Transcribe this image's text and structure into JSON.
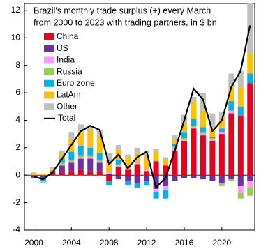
{
  "chart_data": {
    "type": "stacked-bar-line",
    "title": [
      "Brazil's monthly trade surplus (+)  every March",
      "from 2000  to 2023  with trading partners, in $ bn"
    ],
    "x": [
      2000,
      2001,
      2002,
      2003,
      2004,
      2005,
      2006,
      2007,
      2008,
      2009,
      2010,
      2011,
      2012,
      2013,
      2014,
      2015,
      2016,
      2017,
      2018,
      2019,
      2020,
      2021,
      2022,
      2023
    ],
    "series": [
      {
        "name": "China",
        "color": "#e8001c",
        "values": [
          0,
          0,
          0.1,
          0.2,
          0.3,
          0.4,
          0.3,
          0.3,
          -0.4,
          0.6,
          0.4,
          0.8,
          0.3,
          1.0,
          0.7,
          1.8,
          2.5,
          3.4,
          2.9,
          2.5,
          3.0,
          4.5,
          4.3,
          6.7
        ]
      },
      {
        "name": "US",
        "color": "#7030a0",
        "values": [
          -0.2,
          -0.3,
          0.2,
          0.5,
          0.6,
          0.8,
          0.9,
          0.6,
          0.1,
          -0.3,
          -0.4,
          -0.6,
          -0.4,
          -1.0,
          -0.8,
          -0.4,
          -0.2,
          -0.2,
          -0.3,
          -0.4,
          -0.6,
          -0.3,
          -0.8,
          -0.4
        ]
      },
      {
        "name": "India",
        "color": "#ff99ff",
        "values": [
          0,
          0,
          0,
          0.1,
          0.1,
          0.1,
          0.1,
          0.1,
          0.1,
          0.1,
          0.1,
          0.1,
          0.1,
          -0.2,
          -0.3,
          0.2,
          0.1,
          0.1,
          0.1,
          0.1,
          0.1,
          0.2,
          -0.5,
          -0.5
        ]
      },
      {
        "name": "Russia",
        "color": "#92d050",
        "values": [
          0,
          0,
          0,
          0.1,
          0.1,
          0.1,
          0.1,
          0.1,
          0.1,
          0.1,
          0.1,
          0.1,
          0.1,
          0.1,
          0.1,
          0.1,
          0.1,
          0.1,
          0.1,
          0.1,
          -0.2,
          -0.1,
          -0.4,
          -0.6
        ]
      },
      {
        "name": "Euro zone",
        "color": "#00b0f0",
        "values": [
          0,
          -0.1,
          0,
          0.3,
          0.6,
          0.7,
          0.6,
          0.5,
          -0.3,
          0.3,
          -0.3,
          -0.3,
          -0.3,
          -0.5,
          -0.6,
          0.2,
          0.4,
          0.5,
          0.4,
          0.1,
          0.3,
          0.7,
          0.7,
          0.7
        ]
      },
      {
        "name": "LatAm",
        "color": "#ffc000",
        "values": [
          0.1,
          0.1,
          0.1,
          0.4,
          0.9,
          1.0,
          1.3,
          1.3,
          0.7,
          0.8,
          0.7,
          0.6,
          0.8,
          0.6,
          0.3,
          0.3,
          0.7,
          1.2,
          1.2,
          0.7,
          0.7,
          1.0,
          1.4,
          1.4
        ]
      },
      {
        "name": "Other",
        "color": "#bfbfbf",
        "values": [
          0.1,
          -0.2,
          0.2,
          0.2,
          0.5,
          0.6,
          0.3,
          0.4,
          0.6,
          0.3,
          0.2,
          0.4,
          0.5,
          0.2,
          0.2,
          0.3,
          0.6,
          0.4,
          1.3,
          1.0,
          0.5,
          1.0,
          1.2,
          3.7
        ]
      }
    ],
    "total": {
      "name": "Total",
      "color": "#000000",
      "values": [
        -0.1,
        -0.3,
        0.2,
        1.2,
        2.2,
        3.2,
        3.6,
        3.3,
        0.8,
        1.5,
        0.5,
        1.3,
        1.7,
        -0.9,
        -0.2,
        1.8,
        4.0,
        6.3,
        5.5,
        3.2,
        4.0,
        6.4,
        7.6,
        10.9
      ]
    },
    "xlim": [
      1999,
      2023.5
    ],
    "xticks": [
      2000,
      2004,
      2008,
      2012,
      2016,
      2020
    ],
    "ylim": [
      -4,
      12.5
    ],
    "yticks": [
      -4,
      -2,
      0,
      2,
      4,
      6,
      8,
      10,
      12
    ],
    "legend": "top-left"
  }
}
